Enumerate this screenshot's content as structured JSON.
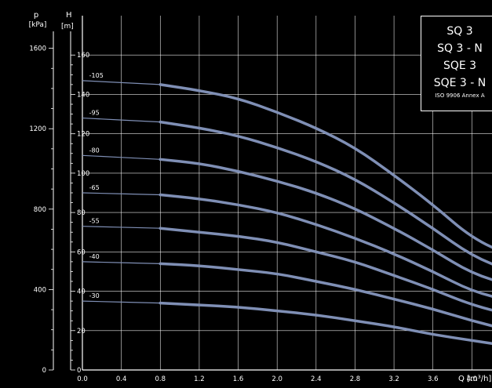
{
  "chart_data": {
    "type": "line",
    "title_lines": [
      "SQ 3",
      "SQ 3 - N",
      "SQE 3",
      "SQE 3 - N"
    ],
    "standard_note": "ISO 9906 Annex A",
    "y_left_outer_label": [
      "p",
      "[kPa]"
    ],
    "y_left_inner_label": [
      "H",
      "[m]"
    ],
    "xlabel": "Q [m³/h]",
    "x_ticks": [
      "0.0",
      "0.4",
      "0.8",
      "1.2",
      "1.6",
      "2.0",
      "2.4",
      "2.8",
      "3.2",
      "3.6",
      "4.0"
    ],
    "h_ticks": [
      "0",
      "20",
      "40",
      "60",
      "80",
      "100",
      "120",
      "140",
      "160"
    ],
    "p_ticks": [
      "0",
      "400",
      "800",
      "1200",
      "1600"
    ],
    "xlim": [
      0,
      4.4
    ],
    "ylim": [
      0,
      165
    ],
    "grid": true,
    "series": [
      {
        "name": "-105",
        "x": [
          0.0,
          0.8,
          1.2,
          1.6,
          2.0,
          2.4,
          2.8,
          3.2,
          3.6,
          4.0,
          4.4
        ],
        "y": [
          147,
          145,
          142,
          138,
          131,
          123,
          113,
          99,
          84,
          67,
          58
        ]
      },
      {
        "name": "-95",
        "x": [
          0.0,
          0.8,
          1.2,
          1.6,
          2.0,
          2.4,
          2.8,
          3.2,
          3.6,
          4.0,
          4.4
        ],
        "y": [
          128,
          126,
          123,
          119,
          113,
          106,
          97,
          85,
          72,
          58,
          50
        ]
      },
      {
        "name": "-80",
        "x": [
          0.0,
          0.8,
          1.2,
          1.6,
          2.0,
          2.4,
          2.8,
          3.2,
          3.6,
          4.0,
          4.4
        ],
        "y": [
          109,
          107,
          105,
          101,
          96,
          90,
          82,
          72,
          61,
          49,
          43
        ]
      },
      {
        "name": "-65",
        "x": [
          0.0,
          0.8,
          1.2,
          1.6,
          2.0,
          2.4,
          2.8,
          3.2,
          3.6,
          4.0,
          4.4
        ],
        "y": [
          90,
          89,
          87,
          84,
          80,
          74,
          67,
          59,
          50,
          40,
          35
        ]
      },
      {
        "name": "-55",
        "x": [
          0.0,
          0.8,
          1.2,
          1.6,
          2.0,
          2.4,
          2.8,
          3.2,
          3.6,
          4.0,
          4.4
        ],
        "y": [
          73,
          72,
          70,
          68,
          65,
          60,
          55,
          48,
          41,
          33,
          28
        ]
      },
      {
        "name": "-40",
        "x": [
          0.0,
          0.8,
          1.2,
          1.6,
          2.0,
          2.4,
          2.8,
          3.2,
          3.6,
          4.0,
          4.4
        ],
        "y": [
          55,
          54,
          53,
          51,
          49,
          45,
          41,
          36,
          31,
          25,
          20
        ]
      },
      {
        "name": "-30",
        "x": [
          0.0,
          0.8,
          1.2,
          1.6,
          2.0,
          2.4,
          2.8,
          3.2,
          3.6,
          4.0,
          4.4
        ],
        "y": [
          35,
          34,
          33,
          32,
          30,
          28,
          25,
          22,
          18,
          15,
          12
        ]
      }
    ],
    "curve_color": "#7f8fb5",
    "background_color": "#000000",
    "grid_color": "#ffffff",
    "text_color": "#ffffff"
  }
}
